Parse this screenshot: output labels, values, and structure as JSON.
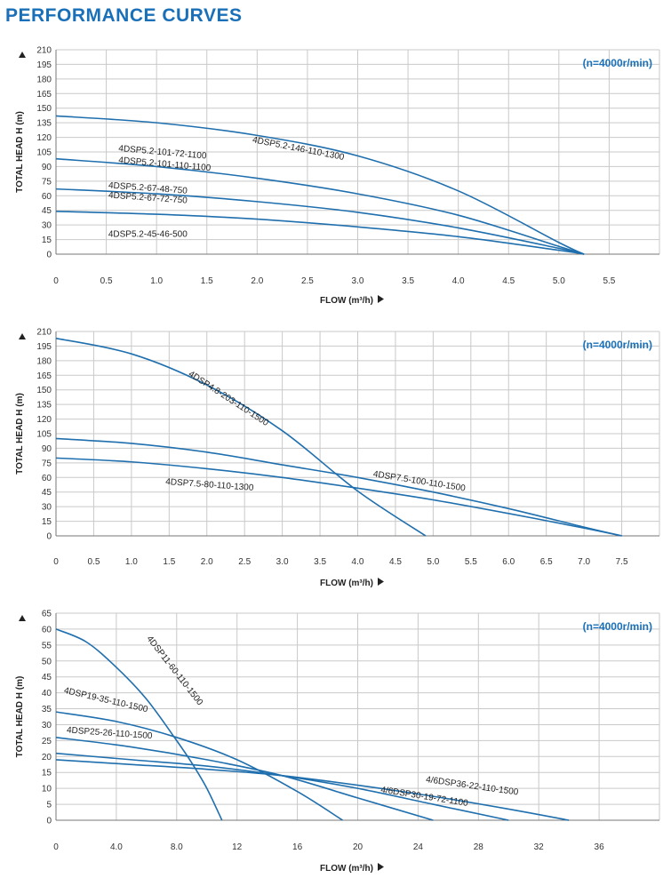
{
  "page": {
    "title": "PERFORMANCE CURVES"
  },
  "colors": {
    "title": "#1a70b8",
    "curve": "#1f6fae",
    "grid": "#c9c9c9"
  },
  "chart_data": [
    {
      "type": "line",
      "speed_note": "(n=4000r/min)",
      "xlabel": "FLOW (m³/h)",
      "ylabel": "TOTAL HEAD H (m)",
      "xlim": [
        0,
        6.0
      ],
      "ylim": [
        0,
        210
      ],
      "xticks": [
        0,
        0.5,
        1.0,
        1.5,
        2.0,
        2.5,
        3.0,
        3.5,
        4.0,
        4.5,
        5.0,
        5.5
      ],
      "xtick_labels": [
        "0",
        "0.5",
        "1.0",
        "1.5",
        "2.0",
        "2.5",
        "3.0",
        "3.5",
        "4.0",
        "4.5",
        "5.0",
        "5.5"
      ],
      "yticks": [
        0,
        15,
        30,
        45,
        60,
        75,
        90,
        105,
        120,
        135,
        150,
        165,
        180,
        195,
        210
      ],
      "ytick_labels": [
        "0",
        "15",
        "30",
        "45",
        "60",
        "75",
        "90",
        "105",
        "120",
        "135",
        "150",
        "165",
        "180",
        "195",
        "210"
      ],
      "series": [
        {
          "x": [
            0,
            1,
            2,
            3,
            4,
            5,
            5.25
          ],
          "y": [
            142,
            135,
            122,
            101,
            65,
            12,
            0
          ]
        },
        {
          "x": [
            0,
            1,
            2,
            3,
            4,
            5,
            5.25
          ],
          "y": [
            98,
            90,
            78,
            62,
            40,
            8,
            0
          ]
        },
        {
          "x": [
            0,
            1,
            2,
            3,
            4,
            5,
            5.25
          ],
          "y": [
            67,
            62,
            54,
            43,
            27,
            6,
            0
          ]
        },
        {
          "x": [
            0,
            1,
            2,
            3,
            4,
            5,
            5.25
          ],
          "y": [
            44,
            41,
            36,
            28,
            18,
            4,
            0
          ]
        }
      ],
      "annotations": [
        {
          "text": "4DSP5.2-146-110-1300",
          "x": 1.95,
          "y": 115,
          "angle": 11
        },
        {
          "text": "4DSP5.2-101-72-1100",
          "x": 0.62,
          "y": 106,
          "angle": 5
        },
        {
          "text": "4DSP5.2-101-110-1100",
          "x": 0.62,
          "y": 94,
          "angle": 5
        },
        {
          "text": "4DSP5.2-67-48-750",
          "x": 0.52,
          "y": 68,
          "angle": 4
        },
        {
          "text": "4DSP5.2-67-72-750",
          "x": 0.52,
          "y": 58,
          "angle": 4
        },
        {
          "text": "4DSP5.2-45-46-500",
          "x": 0.52,
          "y": 18,
          "angle": 0
        }
      ]
    },
    {
      "type": "line",
      "speed_note": "(n=4000r/min)",
      "xlabel": "FLOW (m³/h)",
      "ylabel": "TOTAL HEAD H (m)",
      "xlim": [
        0,
        8.0
      ],
      "ylim": [
        0,
        210
      ],
      "xticks": [
        0,
        0.5,
        1.0,
        1.5,
        2.0,
        2.5,
        3.0,
        3.5,
        4.0,
        4.5,
        5.0,
        5.5,
        6.0,
        6.5,
        7.0,
        7.5
      ],
      "xtick_labels": [
        "0",
        "0.5",
        "1.0",
        "1.5",
        "2.0",
        "2.5",
        "3.0",
        "3.5",
        "4.0",
        "4.5",
        "5.0",
        "5.5",
        "6.0",
        "6.5",
        "7.0",
        "7.5"
      ],
      "yticks": [
        0,
        15,
        30,
        45,
        60,
        75,
        90,
        105,
        120,
        135,
        150,
        165,
        180,
        195,
        210
      ],
      "ytick_labels": [
        "0",
        "15",
        "30",
        "45",
        "60",
        "75",
        "90",
        "105",
        "120",
        "135",
        "150",
        "165",
        "180",
        "195",
        "210"
      ],
      "series": [
        {
          "x": [
            0,
            1,
            2,
            3,
            4,
            4.9
          ],
          "y": [
            203,
            187,
            155,
            108,
            46,
            0
          ]
        },
        {
          "x": [
            0,
            1,
            2,
            3,
            4,
            5,
            6,
            7,
            7.5
          ],
          "y": [
            100,
            95,
            86,
            73,
            60,
            45,
            28,
            9,
            0
          ]
        },
        {
          "x": [
            0,
            1,
            2,
            3,
            4,
            5,
            6,
            7,
            7.5
          ],
          "y": [
            80,
            76,
            69,
            60,
            49,
            37,
            23,
            8,
            0
          ]
        }
      ],
      "annotations": [
        {
          "text": "4DSP4.8-203-110-1500",
          "x": 1.75,
          "y": 165,
          "angle": 33
        },
        {
          "text": "4DSP7.5-100-110-1500",
          "x": 4.2,
          "y": 61,
          "angle": 9
        },
        {
          "text": "4DSP7.5-80-110-1300",
          "x": 1.45,
          "y": 53,
          "angle": 4
        }
      ]
    },
    {
      "type": "line",
      "speed_note": "(n=4000r/min)",
      "xlabel": "FLOW (m³/h)",
      "ylabel": "TOTAL HEAD H (m)",
      "xlim": [
        0,
        40
      ],
      "ylim": [
        0,
        65
      ],
      "xticks": [
        0,
        4,
        8,
        12,
        16,
        20,
        24,
        28,
        32,
        36
      ],
      "xtick_labels": [
        "0",
        "4.0",
        "8.0",
        "12",
        "16",
        "20",
        "24",
        "28",
        "32",
        "36"
      ],
      "yticks": [
        0,
        5,
        10,
        15,
        20,
        25,
        30,
        35,
        40,
        45,
        50,
        55,
        60,
        65
      ],
      "ytick_labels": [
        "0",
        "5",
        "10",
        "15",
        "20",
        "25",
        "30",
        "35",
        "40",
        "45",
        "50",
        "55",
        "60",
        "65"
      ],
      "series": [
        {
          "x": [
            0,
            2,
            4,
            6,
            8,
            9,
            10,
            11
          ],
          "y": [
            60,
            56,
            48,
            38,
            25,
            18,
            10,
            0
          ]
        },
        {
          "x": [
            0,
            4,
            8,
            12,
            16,
            19
          ],
          "y": [
            34,
            31,
            26,
            19,
            9,
            0
          ]
        },
        {
          "x": [
            0,
            5,
            10,
            15,
            20,
            25
          ],
          "y": [
            26,
            23,
            19,
            14,
            7,
            0
          ]
        },
        {
          "x": [
            0,
            5,
            10,
            15,
            20,
            25,
            30
          ],
          "y": [
            21,
            19,
            17,
            14,
            10,
            5,
            0
          ]
        },
        {
          "x": [
            0,
            5,
            10,
            15,
            20,
            25,
            30,
            34
          ],
          "y": [
            19,
            17.5,
            16,
            14,
            11,
            7.5,
            3.5,
            0
          ]
        }
      ],
      "annotations": [
        {
          "text": "4DSP11-60-110-1500",
          "x": 6.0,
          "y": 57,
          "angle": 52
        },
        {
          "text": "4DSP19-35-110-1500",
          "x": 0.5,
          "y": 40,
          "angle": 13
        },
        {
          "text": "4DSP25-26-110-1500",
          "x": 0.7,
          "y": 27.5,
          "angle": 4
        },
        {
          "text": "4/6DSP36-22-110-1500",
          "x": 24.5,
          "y": 12,
          "angle": 8
        },
        {
          "text": "4/6DSP30-19-72-1100",
          "x": 21.5,
          "y": 8.8,
          "angle": 9
        }
      ]
    }
  ]
}
